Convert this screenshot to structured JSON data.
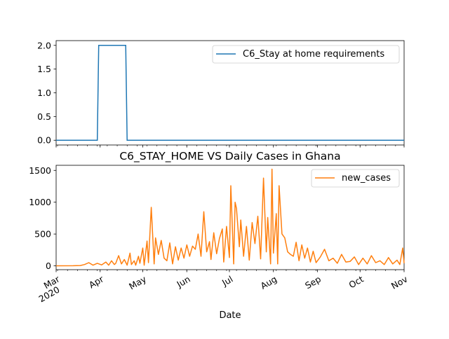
{
  "chart_data": [
    {
      "type": "line",
      "title": "",
      "xlabel": "",
      "ylabel": "",
      "xlim": [
        "2020-03-01",
        "2020-11-01"
      ],
      "ylim": [
        -0.1,
        2.1
      ],
      "yticks": [
        "0.0",
        "0.5",
        "1.0",
        "1.5",
        "2.0"
      ],
      "legend_position": "top-right",
      "series": [
        {
          "name": "C6_Stay at home requirements",
          "color": "#1f77b4",
          "x": [
            "2020-03-01",
            "2020-03-30",
            "2020-03-31",
            "2020-04-19",
            "2020-04-20",
            "2020-11-01"
          ],
          "y": [
            0,
            0,
            2,
            2,
            0,
            0
          ]
        }
      ]
    },
    {
      "type": "line",
      "title": "C6_STAY_HOME VS Daily Cases in Ghana",
      "xlabel": "Date",
      "ylabel": "",
      "xlim": [
        "2020-03-01",
        "2020-11-01"
      ],
      "ylim": [
        -60,
        1580
      ],
      "yticks": [
        "0",
        "500",
        "1000",
        "1500"
      ],
      "xticks": [
        {
          "date": "2020-03-01",
          "label": "Mar",
          "sub": "2020"
        },
        {
          "date": "2020-04-01",
          "label": "Apr",
          "sub": ""
        },
        {
          "date": "2020-05-01",
          "label": "May",
          "sub": ""
        },
        {
          "date": "2020-06-01",
          "label": "Jun",
          "sub": ""
        },
        {
          "date": "2020-07-01",
          "label": "Jul",
          "sub": ""
        },
        {
          "date": "2020-08-01",
          "label": "Aug",
          "sub": ""
        },
        {
          "date": "2020-09-01",
          "label": "Sep",
          "sub": ""
        },
        {
          "date": "2020-10-01",
          "label": "Oct",
          "sub": ""
        },
        {
          "date": "2020-11-01",
          "label": "Nov",
          "sub": ""
        }
      ],
      "legend_position": "top-right",
      "series": [
        {
          "name": "new_cases",
          "color": "#ff7f0e",
          "x": [
            "2020-03-01",
            "2020-03-13",
            "2020-03-18",
            "2020-03-21",
            "2020-03-24",
            "2020-03-27",
            "2020-03-30",
            "2020-04-02",
            "2020-04-05",
            "2020-04-07",
            "2020-04-09",
            "2020-04-11",
            "2020-04-12",
            "2020-04-14",
            "2020-04-16",
            "2020-04-18",
            "2020-04-20",
            "2020-04-22",
            "2020-04-23",
            "2020-04-25",
            "2020-04-26",
            "2020-04-28",
            "2020-04-29",
            "2020-05-01",
            "2020-05-02",
            "2020-05-04",
            "2020-05-05",
            "2020-05-07",
            "2020-05-09",
            "2020-05-10",
            "2020-05-12",
            "2020-05-14",
            "2020-05-16",
            "2020-05-18",
            "2020-05-20",
            "2020-05-22",
            "2020-05-24",
            "2020-05-26",
            "2020-05-28",
            "2020-05-30",
            "2020-06-01",
            "2020-06-03",
            "2020-06-05",
            "2020-06-07",
            "2020-06-09",
            "2020-06-11",
            "2020-06-13",
            "2020-06-15",
            "2020-06-17",
            "2020-06-18",
            "2020-06-20",
            "2020-06-22",
            "2020-06-24",
            "2020-06-26",
            "2020-06-27",
            "2020-06-29",
            "2020-07-01",
            "2020-07-02",
            "2020-07-04",
            "2020-07-05",
            "2020-07-06",
            "2020-07-08",
            "2020-07-09",
            "2020-07-11",
            "2020-07-13",
            "2020-07-15",
            "2020-07-17",
            "2020-07-19",
            "2020-07-21",
            "2020-07-23",
            "2020-07-25",
            "2020-07-27",
            "2020-07-28",
            "2020-07-30",
            "2020-07-31",
            "2020-08-01",
            "2020-08-03",
            "2020-08-04",
            "2020-08-05",
            "2020-08-07",
            "2020-08-09",
            "2020-08-11",
            "2020-08-13",
            "2020-08-15",
            "2020-08-17",
            "2020-08-19",
            "2020-08-21",
            "2020-08-23",
            "2020-08-25",
            "2020-08-27",
            "2020-08-29",
            "2020-08-31",
            "2020-09-03",
            "2020-09-06",
            "2020-09-09",
            "2020-09-12",
            "2020-09-15",
            "2020-09-18",
            "2020-09-21",
            "2020-09-24",
            "2020-09-27",
            "2020-09-30",
            "2020-10-03",
            "2020-10-06",
            "2020-10-09",
            "2020-10-12",
            "2020-10-15",
            "2020-10-18",
            "2020-10-21",
            "2020-10-24",
            "2020-10-27",
            "2020-10-29",
            "2020-10-31",
            "2020-11-01"
          ],
          "y": [
            0,
            2,
            5,
            20,
            50,
            10,
            40,
            15,
            60,
            10,
            80,
            20,
            40,
            160,
            30,
            100,
            10,
            200,
            20,
            80,
            10,
            150,
            40,
            280,
            10,
            390,
            50,
            920,
            30,
            440,
            180,
            400,
            120,
            80,
            360,
            30,
            300,
            90,
            280,
            120,
            330,
            150,
            310,
            260,
            500,
            150,
            850,
            220,
            380,
            100,
            520,
            190,
            430,
            580,
            60,
            620,
            130,
            1260,
            30,
            1000,
            900,
            300,
            720,
            150,
            620,
            90,
            680,
            350,
            780,
            110,
            1380,
            220,
            760,
            30,
            1520,
            200,
            820,
            30,
            1260,
            500,
            440,
            220,
            180,
            150,
            370,
            80,
            330,
            120,
            280,
            60,
            230,
            50,
            140,
            260,
            80,
            120,
            40,
            180,
            60,
            70,
            140,
            20,
            120,
            30,
            160,
            50,
            80,
            20,
            130,
            30,
            90,
            20,
            280,
            40
          ]
        }
      ]
    }
  ]
}
